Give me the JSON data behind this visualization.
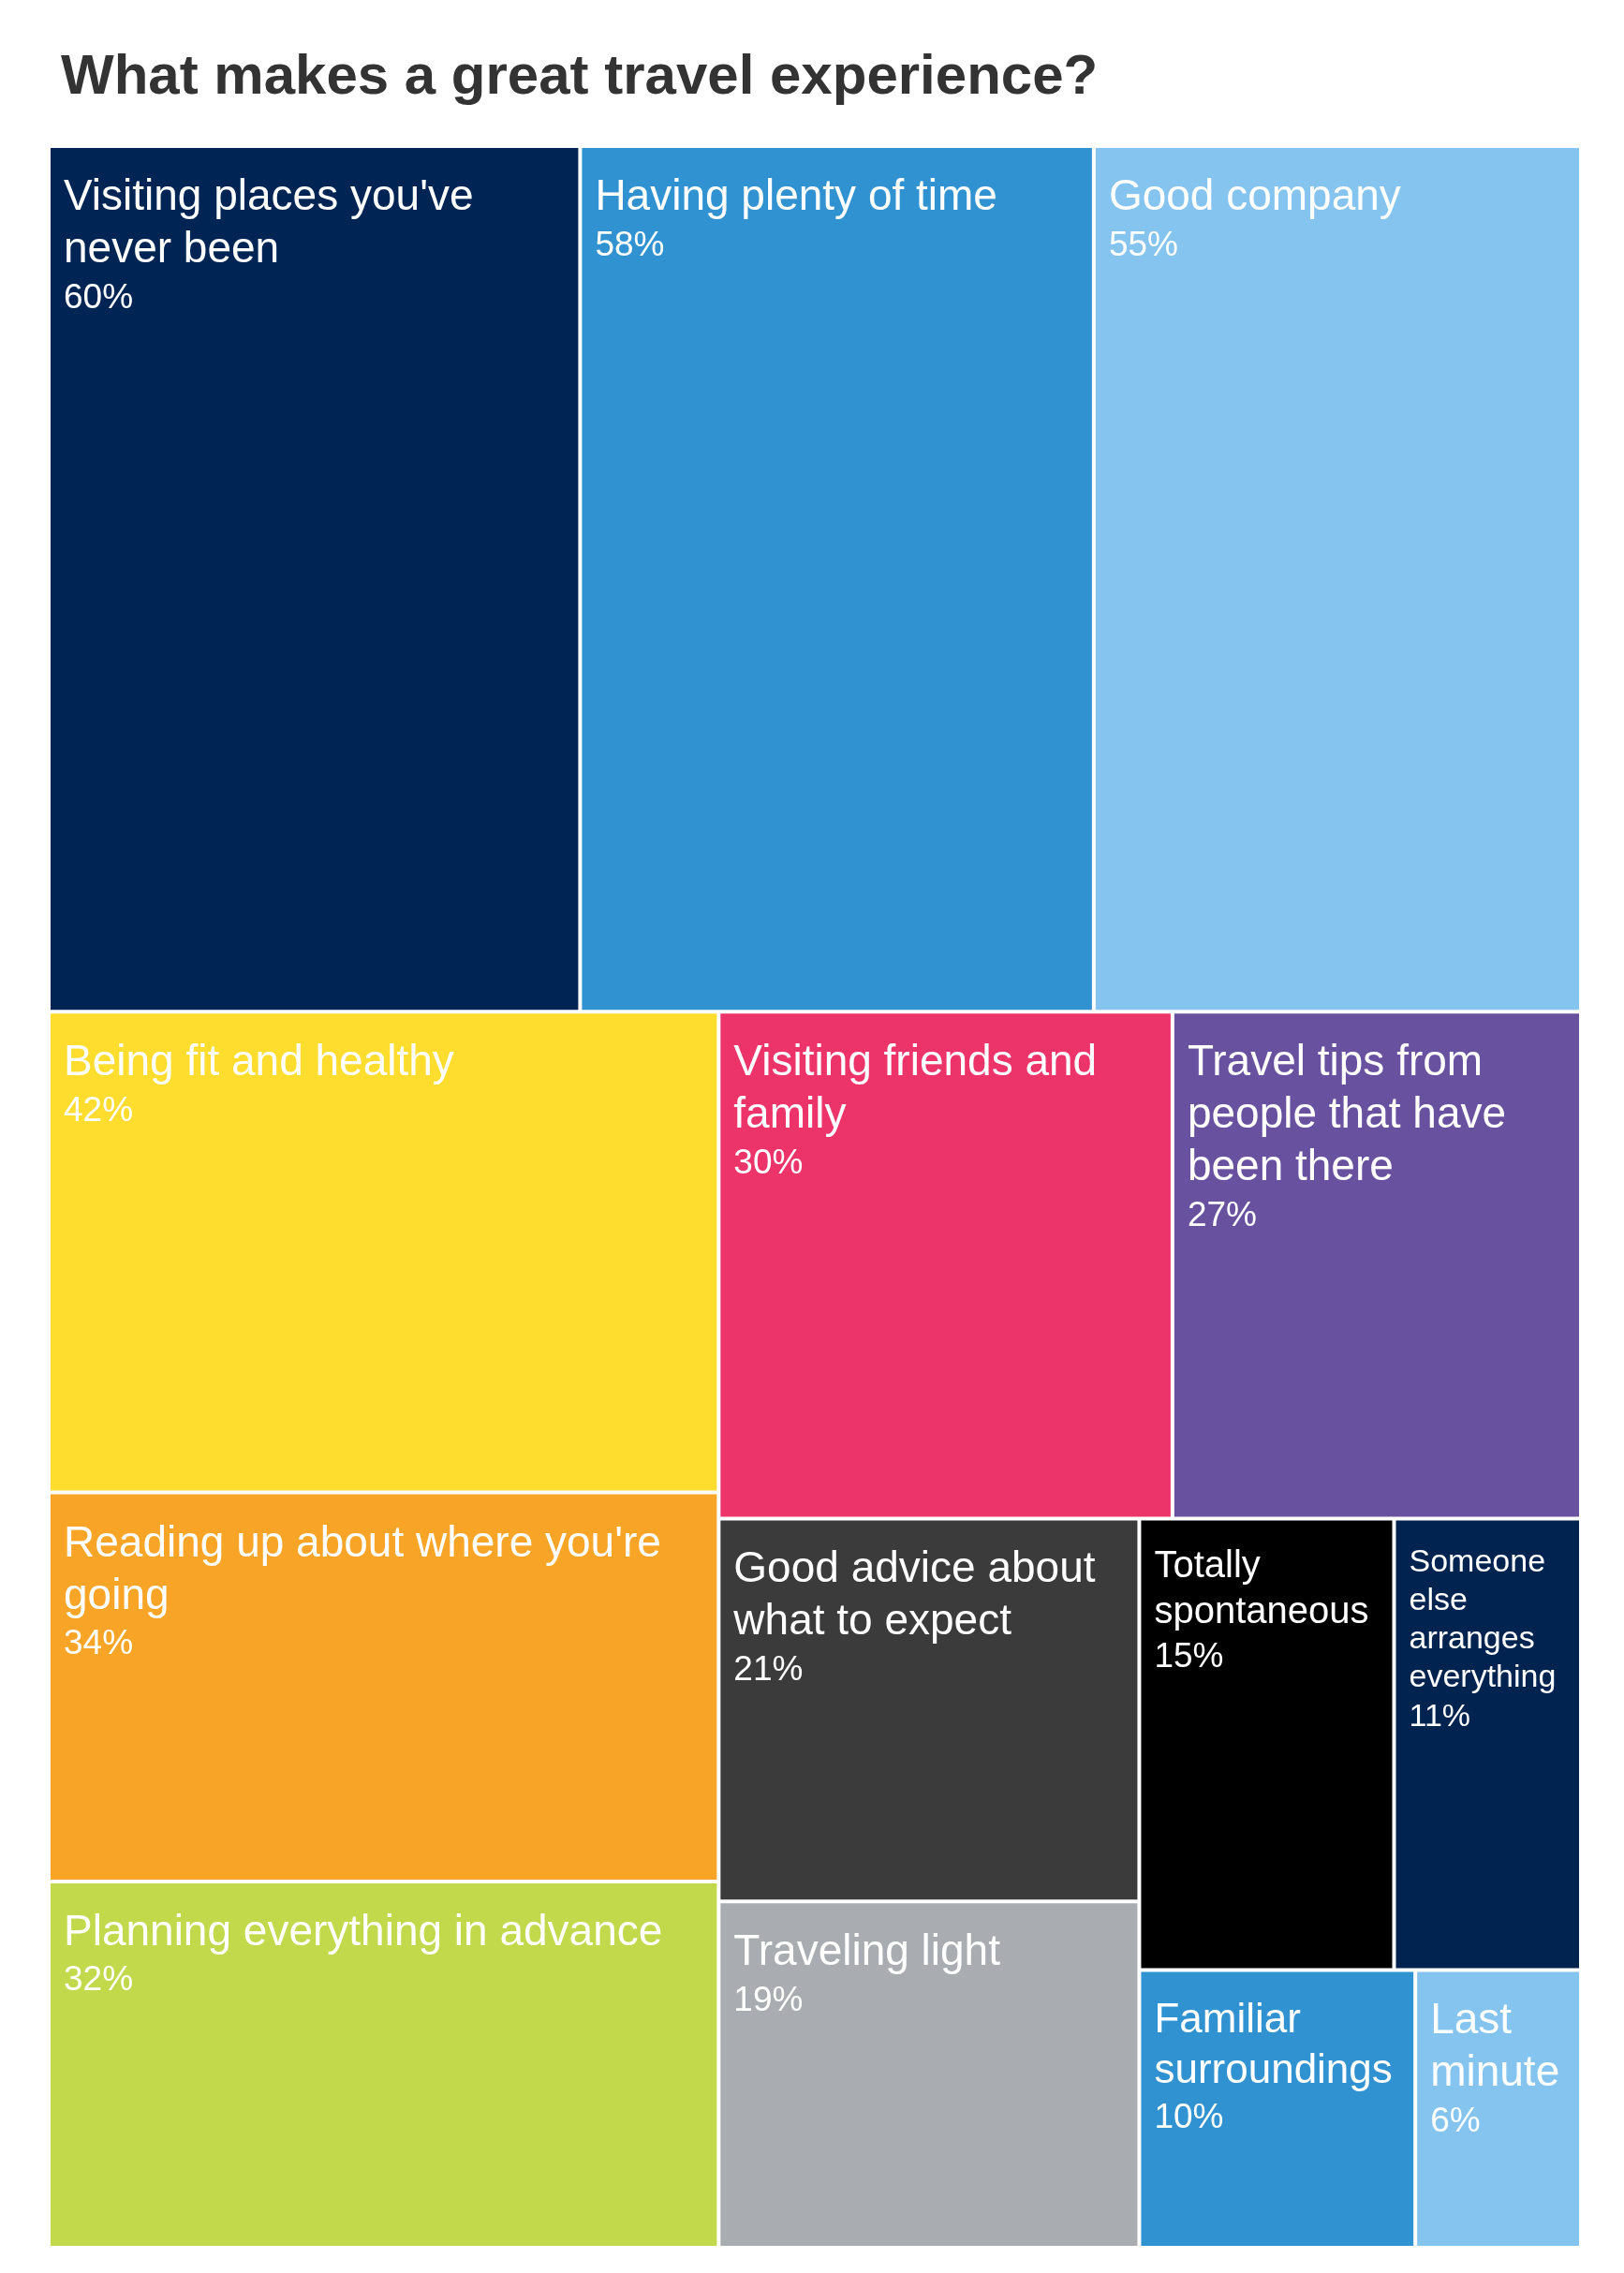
{
  "chart_data": {
    "type": "other",
    "title": "What makes a great travel experience?",
    "categories": [
      "Visiting places you've never been",
      "Having plenty of time",
      "Good company",
      "Being fit and healthy",
      "Reading up about where you're going",
      "Planning everything in advance",
      "Visiting friends and family",
      "Travel tips from people that have been there",
      "Good advice about what to expect",
      "Traveling light",
      "Totally spontaneous",
      "Someone else arranges everything",
      "Familiar surroundings",
      "Last minute"
    ],
    "values": [
      60,
      58,
      55,
      42,
      34,
      32,
      30,
      27,
      21,
      19,
      15,
      11,
      10,
      6
    ],
    "value_labels": [
      "60%",
      "58%",
      "55%",
      "42%",
      "34%",
      "32%",
      "30%",
      "27%",
      "21%",
      "19%",
      "15%",
      "11%",
      "10%",
      "6%"
    ],
    "colors": [
      "#002554",
      "#3092d0",
      "#84c4ee",
      "#fedd2e",
      "#f8a527",
      "#c1d94a",
      "#ec336a",
      "#68519f",
      "#3b3b3b",
      "#a9acb0",
      "#000000",
      "#00234f",
      "#3092d0",
      "#84c4ee"
    ]
  }
}
